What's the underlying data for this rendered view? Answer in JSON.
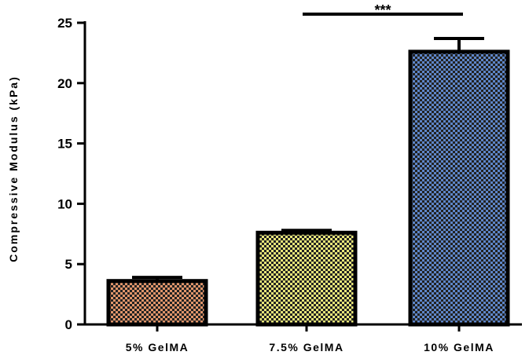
{
  "chart_data": {
    "type": "bar",
    "title": "",
    "xlabel": "",
    "ylabel": "Compressive Modulus (kPa)",
    "ylim": [
      0,
      25
    ],
    "yticks": [
      0,
      5,
      10,
      15,
      20,
      25
    ],
    "yticklabels": [
      "0",
      "5",
      "10",
      "15",
      "20",
      "25"
    ],
    "categories": [
      "5% GelMA",
      "7.5% GelMA",
      "10% GelMA"
    ],
    "values": [
      3.6,
      7.6,
      22.6
    ],
    "errors": [
      0.3,
      0.2,
      1.1
    ],
    "colors": [
      "#e0956a",
      "#e8e67a",
      "#5e86c8"
    ],
    "pattern": "checkerboard",
    "significance": [
      {
        "from": 1,
        "to": 2,
        "label": "***"
      }
    ]
  }
}
